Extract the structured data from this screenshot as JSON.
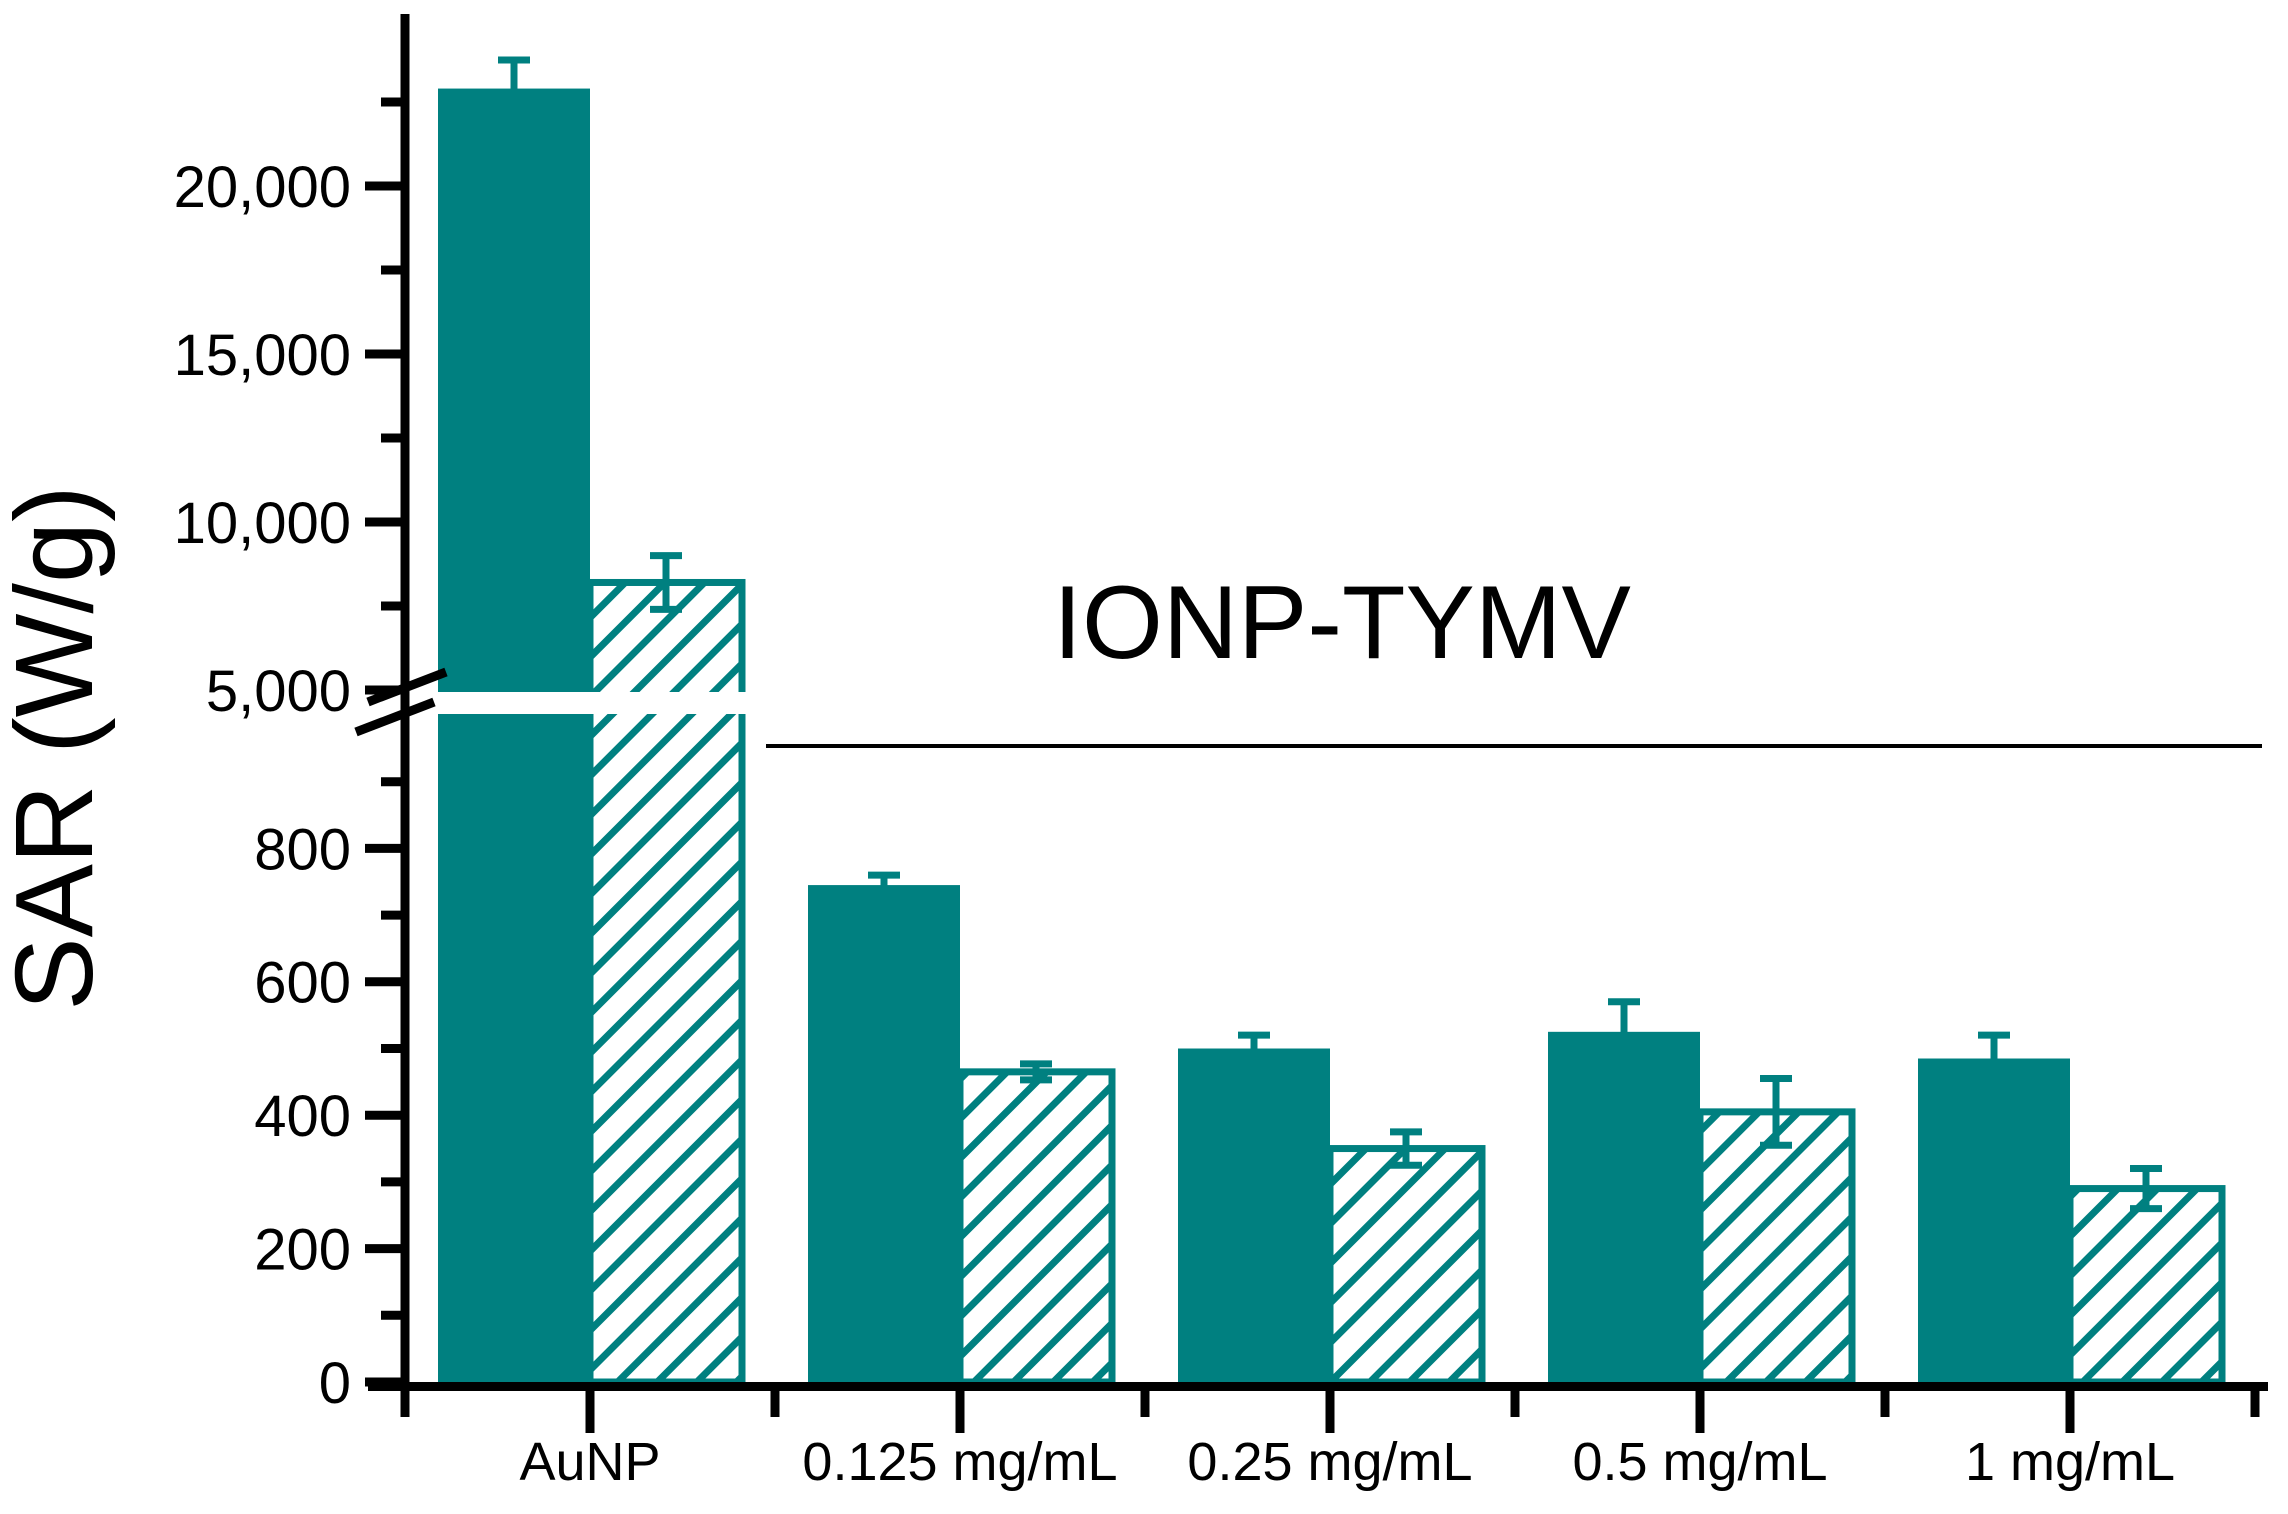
{
  "chart_data": {
    "type": "bar",
    "title": "",
    "ylabel": "SAR (W/g)",
    "xlabel": "",
    "categories": [
      "AuNP",
      "0.125 mg/mL",
      "0.25 mg/mL",
      "0.5 mg/mL",
      "1 mg/mL"
    ],
    "series": [
      {
        "name": "solid-bars",
        "style": "solid",
        "values": [
          22900,
          745,
          500,
          525,
          485
        ],
        "errors": [
          850,
          15,
          20,
          45,
          35
        ]
      },
      {
        "name": "hatched-bars",
        "style": "diagonal-hatch",
        "values": [
          8200,
          465,
          350,
          405,
          290
        ],
        "errors": [
          800,
          12,
          25,
          50,
          30
        ]
      }
    ],
    "y_axis": {
      "has_break": true,
      "lower_range": [
        0,
        1000
      ],
      "upper_range": [
        5000,
        24500
      ],
      "lower_major_ticks": [
        {
          "value": 0,
          "label": "0"
        },
        {
          "value": 200,
          "label": "200"
        },
        {
          "value": 400,
          "label": "400"
        },
        {
          "value": 600,
          "label": "600"
        },
        {
          "value": 800,
          "label": "800"
        }
      ],
      "lower_minor_ticks": [
        100,
        300,
        500,
        700,
        900
      ],
      "upper_major_ticks": [
        {
          "value": 5000,
          "label": "5,000"
        },
        {
          "value": 10000,
          "label": "10,000"
        },
        {
          "value": 15000,
          "label": "15,000"
        },
        {
          "value": 20000,
          "label": "20,000"
        }
      ],
      "upper_minor_ticks": [
        7500,
        12500,
        17500,
        22500
      ]
    },
    "annotation": {
      "text": "IONP-TYMV",
      "applies_to": [
        "0.125 mg/mL",
        "0.25 mg/mL",
        "0.5 mg/mL",
        "1 mg/mL"
      ]
    },
    "legend": null,
    "grid": false,
    "colors": {
      "bar": "#008080",
      "axis": "#000000",
      "background": "#ffffff"
    }
  }
}
